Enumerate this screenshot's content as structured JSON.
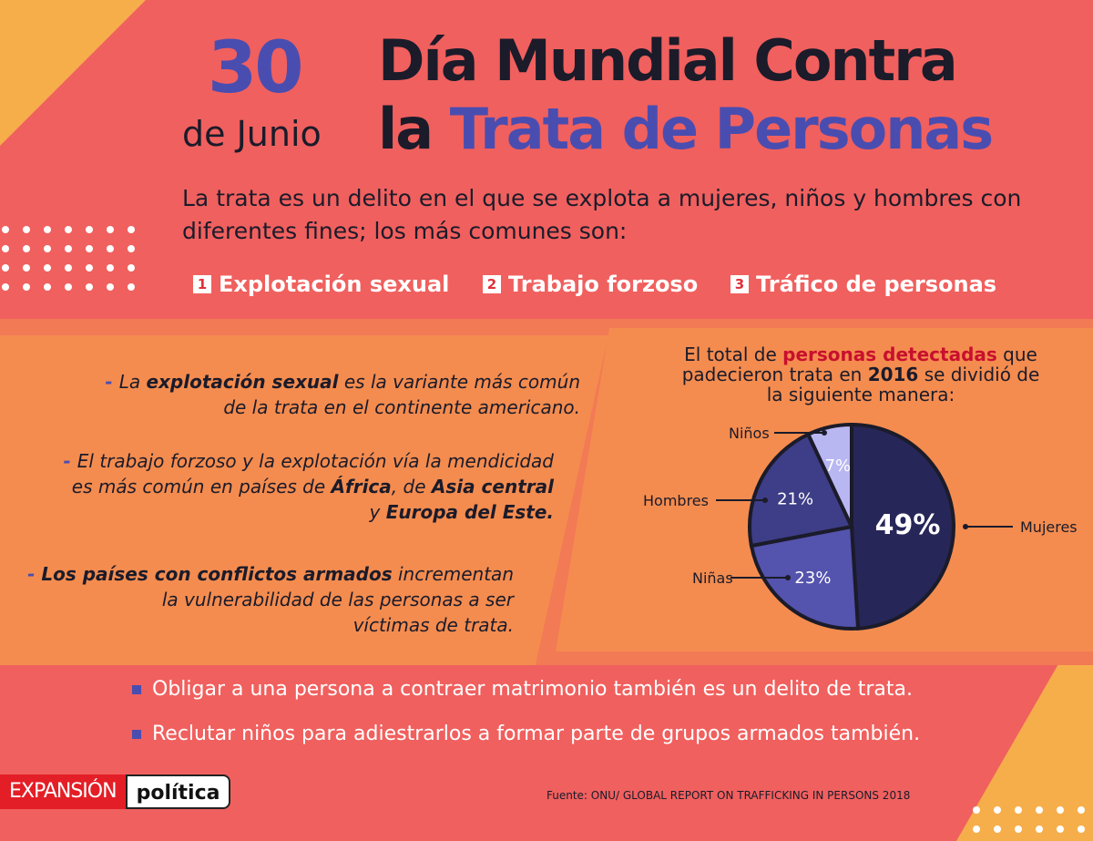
{
  "header": {
    "day": "30",
    "month": "de Junio",
    "title_line1": "Día Mundial Contra",
    "title_line2_a": "la",
    "title_line2_b": "Trata de Personas"
  },
  "intro": "La trata es un delito en el que se explota  a mujeres, niños y hombres con diferentes fines; los más comunes son:",
  "purposes": [
    {
      "n": "1",
      "label": "Explotación sexual"
    },
    {
      "n": "2",
      "label": "Trabajo forzoso"
    },
    {
      "n": "3",
      "label": "Tráfico de personas"
    }
  ],
  "facts": [
    [
      {
        "t": "- ",
        "s": "dash"
      },
      {
        "t": "La "
      },
      {
        "t": "explotación sexual",
        "b": true
      },
      {
        "t": " es la variante más común"
      },
      {
        "br": true
      },
      {
        "t": "de la trata en el continente americano."
      }
    ],
    [
      {
        "t": "- ",
        "s": "dash"
      },
      {
        "t": "El trabajo forzoso y la explotación vía la mendicidad"
      },
      {
        "br": true
      },
      {
        "t": "es más común en países de "
      },
      {
        "t": "África",
        "b": true
      },
      {
        "t": ", de "
      },
      {
        "t": "Asia central",
        "b": true
      },
      {
        "br": true
      },
      {
        "t": "y "
      },
      {
        "t": "Europa del Este.",
        "b": true
      }
    ],
    [
      {
        "t": "- ",
        "s": "dash"
      },
      {
        "t": "Los países con conflictos armados",
        "b": true
      },
      {
        "t": " incrementan"
      },
      {
        "br": true
      },
      {
        "t": "la vulnerabilidad de las personas a ser"
      },
      {
        "br": true
      },
      {
        "t": "víctimas de trata."
      }
    ]
  ],
  "chart_title": {
    "a": "El total de ",
    "b": "personas detectadas",
    "c": " que padecieron trata en ",
    "d": "2016",
    "e": " se dividió de la siguiente manera:"
  },
  "chart_data": {
    "type": "pie",
    "categories": [
      "Mujeres",
      "Niñas",
      "Hombres",
      "Niños"
    ],
    "values": [
      49,
      23,
      21,
      7
    ],
    "labels": [
      "49%",
      "23%",
      "21%",
      "7%"
    ],
    "colors": [
      "#262659",
      "#5453ad",
      "#3e3d87",
      "#b9b7f2"
    ]
  },
  "bullets": [
    "Obligar a una persona a contraer matrimonio también es un delito de trata.",
    "Reclutar niños para adiestrarlos a formar parte de grupos armados también."
  ],
  "footer": {
    "logo_a": "EXPANSIÓN",
    "logo_b": "política",
    "source": "Fuente: ONU/ GLOBAL REPORT ON TRAFFICKING IN PERSONS 2018"
  }
}
